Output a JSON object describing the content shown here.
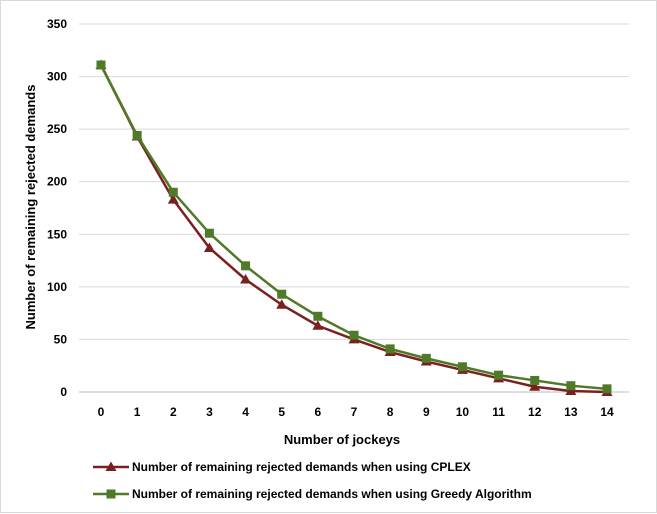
{
  "chart_data": {
    "type": "line",
    "xlabel": "Number of jockeys",
    "ylabel": "Number of remaining rejected demands",
    "ylim": [
      0,
      350
    ],
    "yticks": [
      0,
      50,
      100,
      150,
      200,
      250,
      300,
      350
    ],
    "x": [
      0,
      1,
      2,
      3,
      4,
      5,
      6,
      7,
      8,
      9,
      10,
      11,
      12,
      13,
      14
    ],
    "grid": "horizontal",
    "legend_position": "bottom",
    "series": [
      {
        "name": "Number of remaining rejected demands when using CPLEX",
        "color": "#7b2020",
        "marker": "triangle",
        "values": [
          311,
          243,
          183,
          137,
          107,
          83,
          63,
          50,
          38,
          29,
          21,
          13,
          5,
          1,
          0
        ]
      },
      {
        "name": "Number of remaining rejected demands when using Greedy Algorithm",
        "color": "#4f7a28",
        "marker": "square",
        "values": [
          311,
          244,
          190,
          151,
          120,
          93,
          72,
          54,
          41,
          32,
          24,
          16,
          11,
          6,
          3
        ]
      }
    ]
  }
}
